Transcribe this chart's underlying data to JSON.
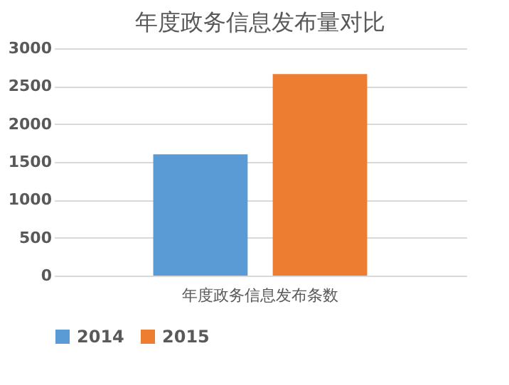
{
  "chart_data": {
    "type": "bar",
    "title": "年度政务信息发布量对比",
    "categories": [
      "年度政务信息发布条数"
    ],
    "series": [
      {
        "name": "2014",
        "color": "#5b9bd5",
        "values": [
          1600
        ]
      },
      {
        "name": "2015",
        "color": "#ed7d31",
        "values": [
          2660
        ]
      }
    ],
    "ylim": [
      0,
      3000
    ],
    "yticks": [
      0,
      500,
      1000,
      1500,
      2000,
      2500,
      3000
    ],
    "grid": "y",
    "legend": "bottom"
  }
}
